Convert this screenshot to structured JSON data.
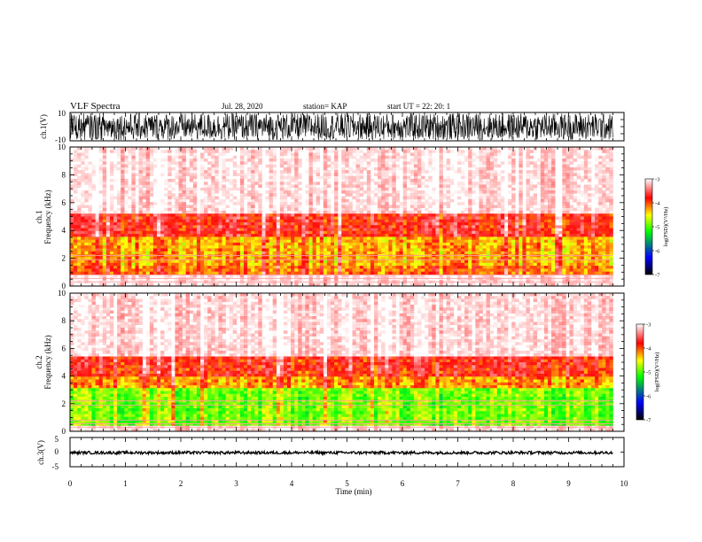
{
  "header": {
    "title": "VLF Spectra",
    "date": "Jul. 28, 2020",
    "station": "station= KAP",
    "start": "start  UT  =   22: 20: 1"
  },
  "colors": {
    "colormap": [
      "#ffffff",
      "#ff0000",
      "#ffff00",
      "#00ff00",
      "#0000ff",
      "#000000"
    ],
    "trace": "#000000",
    "axes": "#000000"
  },
  "chart_data": [
    {
      "type": "line",
      "id": "ch1-waveform",
      "ylabel": "ch.1(V)",
      "ylim": [
        -10,
        10
      ],
      "yticks": [
        "10",
        "-10"
      ],
      "xlim": [
        0,
        9.8
      ],
      "envelope_v": [
        -9.5,
        9.5
      ],
      "description_values": "dense noisy waveform filling nearly the full ±10 V range"
    },
    {
      "type": "heatmap",
      "id": "ch1-spectrogram",
      "ylabel": "ch.1\nFrequency (kHz)",
      "ylim": [
        0,
        10
      ],
      "yticks": [
        "0",
        "2",
        "4",
        "6",
        "8",
        "10"
      ],
      "xlim": [
        0,
        9.8
      ],
      "colorbar": {
        "label": "log(PSD)(V²/Hz)",
        "range": [
          -7,
          -3
        ],
        "ticks": [
          "-3",
          "-4",
          "-5",
          "-6",
          "-7"
        ]
      },
      "bands": [
        {
          "fmin": 0.9,
          "fmax": 1.4,
          "level": -4.1
        },
        {
          "fmin": 1.4,
          "fmax": 3.6,
          "level": -4.3
        },
        {
          "fmin": 3.6,
          "fmax": 5.2,
          "level": -3.8
        },
        {
          "fmin": 5.2,
          "fmax": 10,
          "level": -3.2
        }
      ]
    },
    {
      "type": "heatmap",
      "id": "ch2-spectrogram",
      "ylabel": "ch.2\nFrequency (kHz)",
      "ylim": [
        0,
        10
      ],
      "yticks": [
        "0",
        "2",
        "4",
        "6",
        "8",
        "10"
      ],
      "xlim": [
        0,
        9.8
      ],
      "colorbar": {
        "label": "log(PSD)(V²/Hz)",
        "range": [
          -7,
          -3
        ],
        "ticks": [
          "-3",
          "-4",
          "-5",
          "-6",
          "-7"
        ]
      },
      "bands": [
        {
          "fmin": 0.5,
          "fmax": 3.2,
          "level": -4.9
        },
        {
          "fmin": 3.2,
          "fmax": 4.0,
          "level": -4.2
        },
        {
          "fmin": 4.0,
          "fmax": 5.5,
          "level": -3.8
        },
        {
          "fmin": 5.5,
          "fmax": 10,
          "level": -3.2
        }
      ]
    },
    {
      "type": "line",
      "id": "ch3-waveform",
      "ylabel": "ch.3(V)",
      "ylim": [
        -5,
        5
      ],
      "yticks": [
        "5",
        "0",
        "-5"
      ],
      "xlim": [
        0,
        9.8
      ],
      "envelope_v": [
        -0.7,
        0.3
      ]
    }
  ],
  "xaxis": {
    "label": "Time (min)",
    "range": [
      0,
      10
    ],
    "ticks": [
      "0",
      "1",
      "2",
      "3",
      "4",
      "5",
      "6",
      "7",
      "8",
      "9",
      "10"
    ]
  }
}
